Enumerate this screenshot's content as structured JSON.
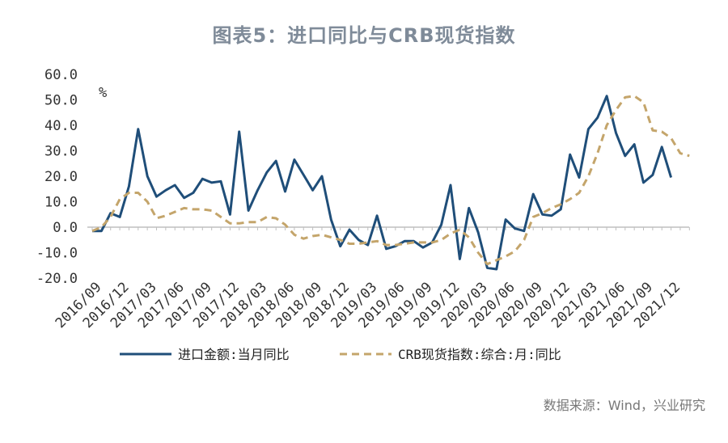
{
  "chart_data": {
    "type": "line",
    "title": "图表5：进口同比与CRB现货指数",
    "unit_label": "%",
    "ylim": [
      -20,
      60
    ],
    "yticks": [
      "60.0",
      "50.0",
      "40.0",
      "30.0",
      "20.0",
      "10.0",
      "0.0",
      "-10.0",
      "-20.0"
    ],
    "ytick_values": [
      60,
      50,
      40,
      30,
      20,
      10,
      0,
      -10,
      -20
    ],
    "xtick_labels": [
      "2016/09",
      "2016/12",
      "2017/03",
      "2017/06",
      "2017/09",
      "2017/12",
      "2018/03",
      "2018/06",
      "2018/09",
      "2018/12",
      "2019/03",
      "2019/06",
      "2019/09",
      "2019/12",
      "2020/03",
      "2020/06",
      "2020/09",
      "2020/12",
      "2021/03",
      "2021/06",
      "2021/09",
      "2021/12"
    ],
    "x_start": "2016/09",
    "series": [
      {
        "name": "进口金额:当月同比",
        "color": "#1f4e79",
        "style": "solid",
        "values": [
          -1.5,
          -1.5,
          5.5,
          4,
          16,
          38.5,
          20,
          12,
          14.5,
          16.5,
          11.5,
          13.5,
          19,
          17.5,
          18,
          5,
          37.5,
          6.5,
          14.5,
          21.5,
          26,
          14,
          26.5,
          20.5,
          14.5,
          20,
          3,
          -7.5,
          -1,
          -5,
          -7,
          4.5,
          -8.5,
          -7.5,
          -5.5,
          -5.5,
          -8,
          -6,
          1,
          16.5,
          -12.5,
          7.5,
          -2,
          -16,
          -16.5,
          3,
          -0.5,
          -1.5,
          13,
          5,
          4.5,
          7,
          28.5,
          19.5,
          38.5,
          43,
          51.5,
          37,
          28,
          32.5,
          17.5,
          20.5,
          31.5,
          19.5
        ]
      },
      {
        "name": "CRB现货指数:综合:月:同比",
        "color": "#c4a56b",
        "style": "dashed",
        "values": [
          -1.5,
          0,
          4,
          11,
          13.5,
          13.5,
          10,
          3.5,
          4.5,
          6,
          7.5,
          7,
          7,
          6.5,
          4,
          1.5,
          1.5,
          2,
          2,
          4,
          3.5,
          1,
          -3,
          -4.5,
          -3.5,
          -3,
          -4,
          -5,
          -6.5,
          -6.5,
          -6,
          -5.5,
          -7,
          -7,
          -6.5,
          -6,
          -6,
          -6,
          -5,
          -2.5,
          -1,
          -4,
          -10,
          -14.5,
          -13,
          -11.5,
          -9.5,
          -5,
          4,
          5.5,
          7.5,
          9,
          11,
          13.5,
          20,
          29,
          40,
          46,
          51,
          51.5,
          49,
          38,
          37.5,
          35,
          29,
          28
        ]
      }
    ]
  },
  "source": "数据来源：Wind，兴业研究"
}
